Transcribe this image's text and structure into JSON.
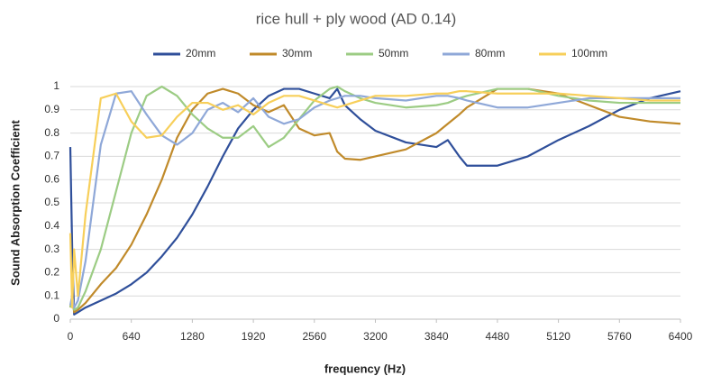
{
  "chart_data": {
    "type": "line",
    "title": "rice hull + ply wood (AD 0.14)",
    "xlabel": "frequency (Hz)",
    "ylabel": "Sound Absorption Coefficient",
    "x": [
      0,
      20,
      40,
      80,
      160,
      320,
      480,
      640,
      800,
      960,
      1120,
      1280,
      1440,
      1600,
      1760,
      1920,
      2080,
      2240,
      2400,
      2560,
      2720,
      2800,
      2880,
      3040,
      3200,
      3520,
      3840,
      3960,
      4080,
      4160,
      4480,
      4800,
      5120,
      5440,
      5760,
      6080,
      6400
    ],
    "series": [
      {
        "name": "20mm",
        "color": "#2f4f9a",
        "values": [
          0.74,
          0.3,
          0.02,
          0.03,
          0.05,
          0.08,
          0.11,
          0.15,
          0.2,
          0.27,
          0.35,
          0.45,
          0.57,
          0.7,
          0.82,
          0.9,
          0.96,
          0.99,
          0.99,
          0.97,
          0.95,
          0.99,
          0.92,
          0.86,
          0.81,
          0.76,
          0.74,
          0.77,
          0.7,
          0.66,
          0.66,
          0.7,
          0.77,
          0.83,
          0.9,
          0.95,
          0.98
        ]
      },
      {
        "name": "30mm",
        "color": "#c08a2a",
        "values": [
          0.05,
          0.1,
          0.03,
          0.04,
          0.07,
          0.15,
          0.22,
          0.32,
          0.45,
          0.6,
          0.78,
          0.9,
          0.97,
          0.99,
          0.97,
          0.92,
          0.89,
          0.92,
          0.82,
          0.79,
          0.8,
          0.72,
          0.69,
          0.685,
          0.7,
          0.73,
          0.8,
          0.84,
          0.88,
          0.91,
          0.99,
          0.99,
          0.97,
          0.92,
          0.87,
          0.85,
          0.84
        ]
      },
      {
        "name": "50mm",
        "color": "#9ccc84",
        "values": [
          0.05,
          0.08,
          0.04,
          0.05,
          0.12,
          0.3,
          0.55,
          0.8,
          0.96,
          1.0,
          0.96,
          0.88,
          0.82,
          0.78,
          0.78,
          0.83,
          0.74,
          0.78,
          0.86,
          0.94,
          0.99,
          1.0,
          0.98,
          0.95,
          0.93,
          0.91,
          0.92,
          0.93,
          0.95,
          0.96,
          0.99,
          0.99,
          0.96,
          0.94,
          0.93,
          0.93,
          0.93
        ]
      },
      {
        "name": "80mm",
        "color": "#8fa8d8",
        "values": [
          0.06,
          0.1,
          0.05,
          0.08,
          0.25,
          0.75,
          0.97,
          0.98,
          0.88,
          0.79,
          0.75,
          0.8,
          0.9,
          0.93,
          0.89,
          0.95,
          0.87,
          0.84,
          0.86,
          0.91,
          0.94,
          0.95,
          0.96,
          0.96,
          0.95,
          0.94,
          0.96,
          0.96,
          0.95,
          0.94,
          0.91,
          0.91,
          0.93,
          0.95,
          0.95,
          0.95,
          0.95
        ]
      },
      {
        "name": "100mm",
        "color": "#f7cf5a",
        "values": [
          0.37,
          0.05,
          0.3,
          0.1,
          0.45,
          0.95,
          0.97,
          0.85,
          0.78,
          0.79,
          0.87,
          0.93,
          0.93,
          0.9,
          0.92,
          0.88,
          0.93,
          0.96,
          0.96,
          0.94,
          0.92,
          0.91,
          0.92,
          0.94,
          0.96,
          0.96,
          0.97,
          0.97,
          0.98,
          0.98,
          0.97,
          0.97,
          0.97,
          0.96,
          0.95,
          0.94,
          0.94
        ]
      }
    ],
    "xlim": [
      0,
      6400
    ],
    "xticks": [
      0,
      640,
      1280,
      1920,
      2560,
      3200,
      3840,
      4480,
      5120,
      5760,
      6400
    ],
    "ylim": [
      0,
      1
    ],
    "yticks": [
      0,
      0.1,
      0.2,
      0.3,
      0.4,
      0.5,
      0.6,
      0.7,
      0.8,
      0.9,
      1
    ],
    "grid": true,
    "legend": "top"
  }
}
